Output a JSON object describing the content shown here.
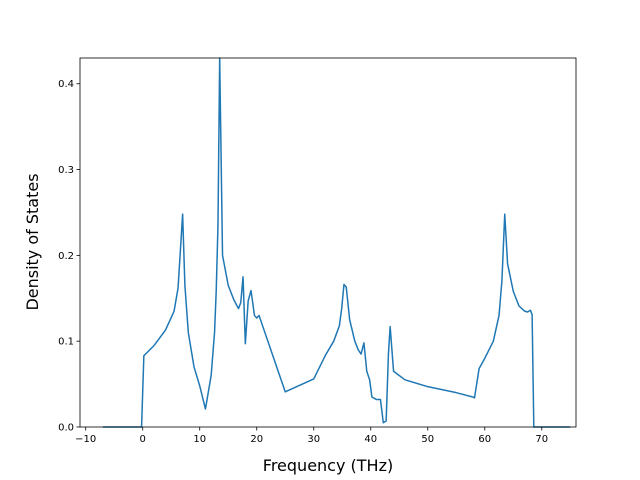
{
  "chart_data": {
    "type": "line",
    "title": "",
    "xlabel": "Frequency (THz)",
    "ylabel": "Density of States",
    "xlim": [
      -11,
      76
    ],
    "ylim": [
      0,
      0.43
    ],
    "grid": false,
    "x_ticks": [
      -10,
      0,
      10,
      20,
      30,
      40,
      50,
      60,
      70
    ],
    "x_tick_labels": [
      "−10",
      "0",
      "10",
      "20",
      "30",
      "40",
      "50",
      "60",
      "70"
    ],
    "y_ticks": [
      0.0,
      0.1,
      0.2,
      0.3,
      0.4
    ],
    "y_tick_labels": [
      "0.0",
      "0.1",
      "0.2",
      "0.3",
      "0.4"
    ],
    "series": [
      {
        "color": "#1f77b4",
        "x": [
          -7,
          -0.2,
          0.2,
          2,
          4,
          5.5,
          6.2,
          6.6,
          7.0,
          7.4,
          8,
          9,
          10,
          11,
          12,
          12.6,
          12.9,
          13.2,
          13.5,
          14,
          15,
          16,
          16.8,
          17.2,
          17.6,
          18.0,
          18.5,
          19,
          19.6,
          20.0,
          20.4,
          25,
          30,
          32,
          33.5,
          34.5,
          34.9,
          35.3,
          35.7,
          36.3,
          37.2,
          37.8,
          38.3,
          38.8,
          39.3,
          39.8,
          40.2,
          41.0,
          41.7,
          42.2,
          42.7,
          43.1,
          43.4,
          44,
          46,
          50,
          55,
          57.9,
          58.2,
          59,
          60,
          61.5,
          62.5,
          63.0,
          63.5,
          64,
          65,
          66,
          67,
          67.5,
          68.0,
          68.3,
          68.6,
          75
        ],
        "values": [
          0,
          0,
          0.083,
          0.095,
          0.113,
          0.135,
          0.162,
          0.205,
          0.248,
          0.165,
          0.11,
          0.07,
          0.048,
          0.021,
          0.06,
          0.11,
          0.16,
          0.235,
          0.43,
          0.2,
          0.165,
          0.148,
          0.138,
          0.145,
          0.175,
          0.097,
          0.147,
          0.159,
          0.13,
          0.127,
          0.13,
          0.041,
          0.056,
          0.083,
          0.1,
          0.118,
          0.138,
          0.166,
          0.163,
          0.125,
          0.1,
          0.09,
          0.085,
          0.098,
          0.065,
          0.055,
          0.035,
          0.032,
          0.032,
          0.005,
          0.007,
          0.085,
          0.117,
          0.065,
          0.055,
          0.047,
          0.04,
          0.035,
          0.034,
          0.068,
          0.08,
          0.1,
          0.13,
          0.17,
          0.248,
          0.19,
          0.158,
          0.141,
          0.135,
          0.134,
          0.136,
          0.131,
          0,
          0
        ]
      }
    ]
  }
}
